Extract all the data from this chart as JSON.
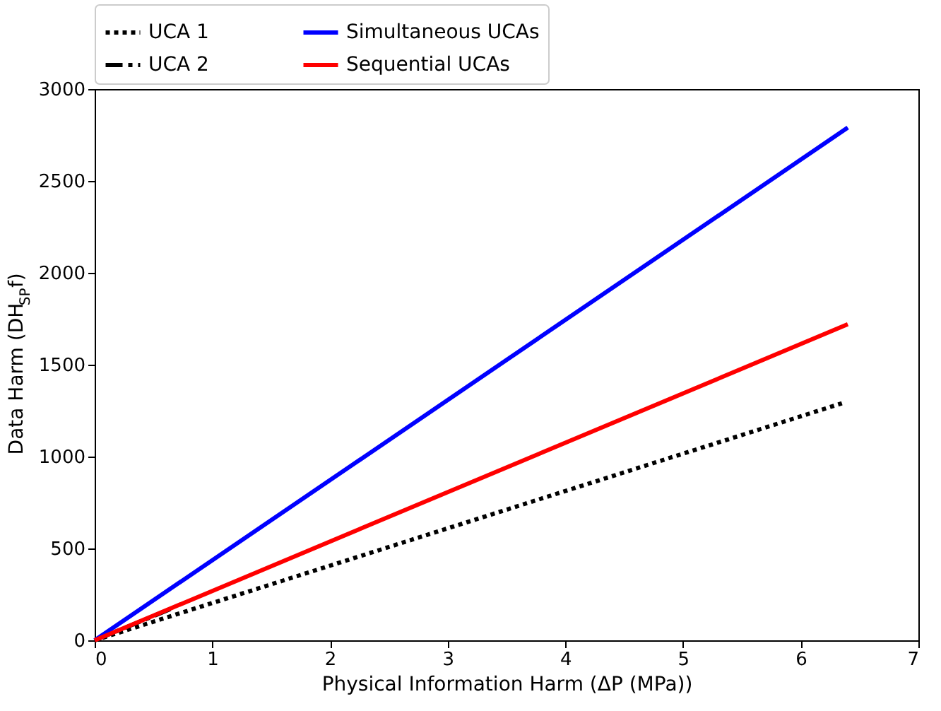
{
  "chart_data": {
    "type": "line",
    "xlabel": "Physical Information Harm (ΔP (MPa))",
    "ylabel": "Data Harm (DH$_{SP}$f)",
    "xlim": [
      0,
      7
    ],
    "xticks": [
      0,
      1,
      2,
      3,
      4,
      5,
      6,
      7
    ],
    "ylim": [
      0,
      3000
    ],
    "yticks": [
      0,
      500,
      1000,
      1500,
      2000,
      2500,
      3000
    ],
    "grid": false,
    "legend": "top",
    "marker": "none",
    "series": [
      {
        "name": "UCA 1",
        "color": "#000000",
        "line_style": "dotted",
        "x": [
          0,
          6.35
        ],
        "values": [
          0,
          1290
        ]
      },
      {
        "name": "UCA 2",
        "color": "#000000",
        "line_style": "dashed",
        "x": [
          0,
          0.68
        ],
        "values": [
          0,
          180
        ]
      },
      {
        "name": "Simultaneous UCAs",
        "color": "#0000ff",
        "line_style": "solid",
        "x": [
          0,
          6.4
        ],
        "values": [
          0,
          2790
        ]
      },
      {
        "name": "Sequential UCAs",
        "color": "#ff0000",
        "line_style": "solid",
        "x": [
          0,
          6.4
        ],
        "values": [
          0,
          1720
        ]
      }
    ]
  }
}
